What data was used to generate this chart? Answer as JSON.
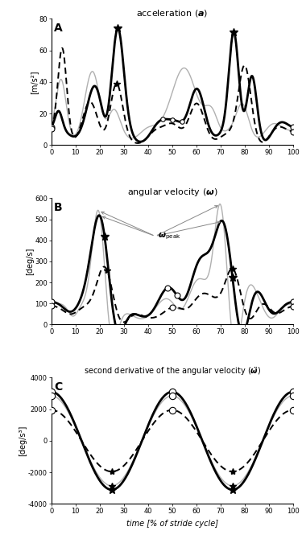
{
  "ylabel_A": "[m/s²]",
  "ylabel_B": "[deg/s]",
  "ylabel_C": "[deg/s³]",
  "xlabel": "time [% of stride cycle]",
  "label_A": "A",
  "label_B": "B",
  "label_C": "C",
  "xlim": [
    0,
    100
  ],
  "ylim_A": [
    0,
    80
  ],
  "ylim_B": [
    0,
    600
  ],
  "ylim_C": [
    -4000,
    4000
  ],
  "yticks_A": [
    0,
    20,
    40,
    60,
    80
  ],
  "yticks_B": [
    0,
    100,
    200,
    300,
    400,
    500,
    600
  ],
  "yticks_C": [
    -4000,
    -2000,
    0,
    2000,
    4000
  ],
  "xticks": [
    0,
    10,
    20,
    30,
    40,
    50,
    60,
    70,
    80,
    90,
    100
  ],
  "color_bold": "#000000",
  "color_dashed": "#000000",
  "color_light": "#b0b0b0"
}
